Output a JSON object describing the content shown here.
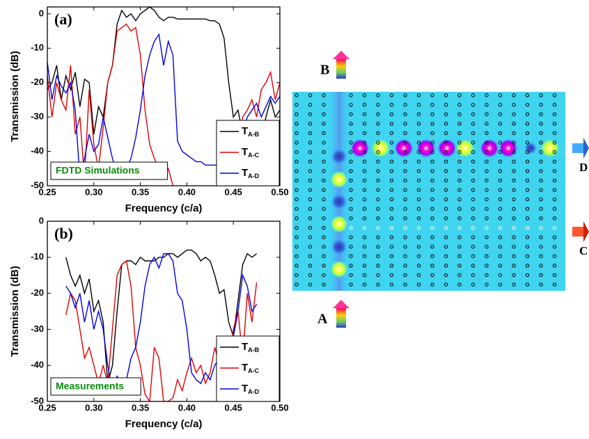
{
  "chart_data": [
    {
      "type": "line",
      "label": "(a)",
      "annotation": "FDTD Simulations",
      "xlabel": "Frequency (c/a)",
      "ylabel": "Transmission (dB)",
      "x": [
        0.25,
        0.255,
        0.26,
        0.265,
        0.27,
        0.275,
        0.28,
        0.285,
        0.29,
        0.295,
        0.3,
        0.305,
        0.31,
        0.315,
        0.32,
        0.325,
        0.33,
        0.335,
        0.34,
        0.345,
        0.35,
        0.355,
        0.36,
        0.365,
        0.37,
        0.375,
        0.38,
        0.385,
        0.39,
        0.395,
        0.4,
        0.405,
        0.41,
        0.415,
        0.42,
        0.425,
        0.43,
        0.435,
        0.44,
        0.445,
        0.45,
        0.455,
        0.46,
        0.465,
        0.47,
        0.475,
        0.48,
        0.485,
        0.49,
        0.495,
        0.5
      ],
      "xlim": [
        0.25,
        0.5
      ],
      "ylim": [
        -50,
        2
      ],
      "xticks": [
        0.25,
        {
          "value": 0.3,
          "label": "0.30"
        },
        0.35,
        {
          "value": 0.4,
          "label": "0.40"
        },
        0.45,
        {
          "value": 0.5,
          "label": "0.50"
        }
      ],
      "yticks": [
        -50,
        -40,
        -30,
        -20,
        -10,
        0
      ],
      "legend": "lower right",
      "series": [
        {
          "name": "TA-B",
          "color": "#000000",
          "values": [
            -22,
            -20,
            -15,
            -25,
            -18,
            -22,
            -17,
            -27,
            -19,
            -20,
            -35,
            -27,
            -30,
            -20,
            -15,
            -3,
            1,
            -1,
            0,
            -2,
            0,
            1,
            2,
            1,
            -1,
            -2,
            -1,
            -1,
            -1.5,
            -1.5,
            -1.5,
            -1.5,
            -1.5,
            -1.5,
            -1.5,
            -2,
            -2,
            -3,
            -7,
            -20,
            -30,
            -28,
            -35,
            -45,
            -40,
            -32,
            -37,
            -30,
            -25,
            -30,
            -28
          ]
        },
        {
          "name": "TA-C",
          "color": "#e00000",
          "values": [
            -18,
            -30,
            -20,
            -25,
            -28,
            -15,
            -35,
            -30,
            -48,
            -22,
            -38,
            -45,
            -33,
            -20,
            -15,
            -5,
            -4,
            -3,
            -5,
            -4,
            -12,
            -28,
            -38,
            -42,
            -45,
            -48,
            -45,
            -50,
            null,
            null,
            null,
            null,
            null,
            null,
            null,
            null,
            null,
            null,
            null,
            null,
            null,
            -40,
            -30,
            -28,
            -25,
            -30,
            -22,
            -20,
            -17,
            -25,
            -20
          ]
        },
        {
          "name": "TA-D",
          "color": "#0000e0",
          "values": [
            -14,
            -25,
            -18,
            -21,
            -23,
            -20,
            -28,
            -48,
            -42,
            -35,
            -40,
            -38,
            -30,
            -36,
            -42,
            -47,
            -44,
            -45,
            -42,
            -36,
            -28,
            -18,
            -12,
            -8,
            -6,
            -15,
            -8,
            -12,
            -37,
            -40,
            -41,
            -42,
            -43,
            -43,
            -44,
            -44,
            -44,
            -44,
            -45,
            -43,
            -42,
            -40,
            -35,
            -30,
            -28,
            -26,
            -30,
            -27,
            -24,
            -26,
            -24
          ]
        }
      ]
    },
    {
      "type": "line",
      "label": "(b)",
      "annotation": "Measurements",
      "xlabel": "Frequency (c/a)",
      "ylabel": "Transmission (dB)",
      "x": [
        0.27,
        0.275,
        0.28,
        0.285,
        0.29,
        0.295,
        0.3,
        0.305,
        0.31,
        0.315,
        0.32,
        0.325,
        0.33,
        0.335,
        0.34,
        0.345,
        0.35,
        0.355,
        0.36,
        0.365,
        0.37,
        0.375,
        0.38,
        0.385,
        0.39,
        0.395,
        0.4,
        0.405,
        0.41,
        0.415,
        0.42,
        0.425,
        0.43,
        0.435,
        0.44,
        0.445,
        0.45,
        0.455,
        0.46,
        0.465,
        0.47,
        0.475
      ],
      "xlim": [
        0.25,
        0.5
      ],
      "ylim": [
        -50,
        0
      ],
      "xticks": [
        0.25,
        {
          "value": 0.3,
          "label": "0.30"
        },
        0.35,
        {
          "value": 0.4,
          "label": "0.40"
        },
        0.45,
        {
          "value": 0.5,
          "label": "0.50"
        }
      ],
      "yticks": [
        -50,
        -40,
        -30,
        -20,
        -10,
        0
      ],
      "legend": "lower right",
      "series": [
        {
          "name": "TA-B",
          "color": "#000000",
          "values": [
            -10,
            -15,
            -18,
            -15,
            -20,
            -16,
            -25,
            -22,
            -28,
            -45,
            -40,
            -25,
            -12,
            -11,
            -11,
            -12,
            -10,
            -11,
            -11,
            -11,
            -10,
            -10,
            -9,
            -9,
            -10,
            -9,
            -8,
            -8,
            -9,
            -11,
            -10,
            -11,
            -15,
            -20,
            -19,
            -28,
            -32,
            -22,
            -12,
            -9,
            -10,
            -9
          ]
        },
        {
          "name": "TA-C",
          "color": "#e00000",
          "values": [
            -26,
            -20,
            -22,
            -30,
            -38,
            -35,
            -40,
            -45,
            -40,
            -45,
            -30,
            -15,
            -12,
            -11,
            -18,
            -35,
            -40,
            -48,
            -50,
            -35,
            -38,
            -50,
            -50,
            -49,
            -44,
            -47,
            -42,
            -38,
            -42,
            -40,
            -45,
            -42,
            -35,
            -40,
            -38,
            -42,
            -30,
            -25,
            -38,
            -20,
            -28,
            -17
          ]
        },
        {
          "name": "TA-D",
          "color": "#0000e0",
          "values": [
            -18,
            -20,
            -24,
            -20,
            -28,
            -22,
            -30,
            -25,
            -30,
            -40,
            -48,
            -43,
            -45,
            -44,
            -38,
            -35,
            -28,
            -18,
            -12,
            -10,
            -13,
            -9,
            -9,
            -11,
            -20,
            -22,
            -30,
            -42,
            -44,
            -45,
            -42,
            -44,
            -40,
            -38,
            -36,
            -40,
            -32,
            -25,
            -15,
            -18,
            -25,
            -23
          ]
        }
      ]
    }
  ],
  "diagram": {
    "labels": [
      "B",
      "D",
      "C",
      "A"
    ]
  }
}
